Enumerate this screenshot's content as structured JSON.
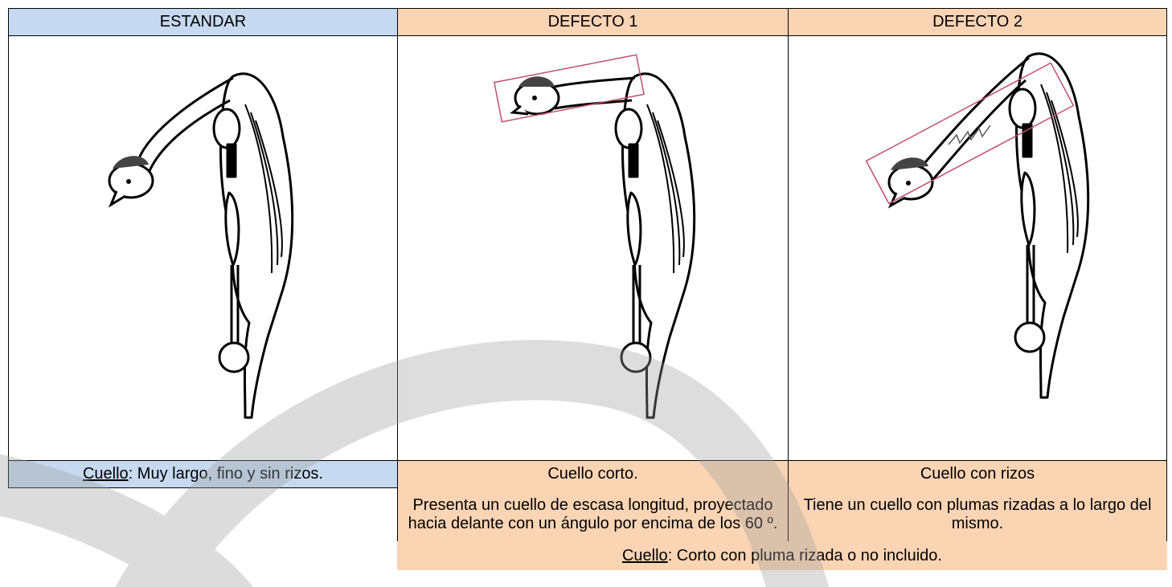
{
  "table": {
    "header": [
      "ESTANDAR",
      "DEFECTO 1",
      "DEFECTO 2"
    ],
    "rows": [
      [
        {
          "label": "Cuello",
          "text": ": Muy largo, fino y sin rizos."
        },
        "Cuello corto.",
        "Cuello con rizos"
      ],
      [
        "Presenta un cuello de escasa longitud, proyectado hacia delante con un ángulo por encima de los 60 º.",
        "Tiene un cuello con plumas rizadas a lo largo del mismo."
      ],
      [
        {
          "label": "Cuello",
          "text": ": Corto con pluma rizada o no incluido."
        }
      ]
    ]
  }
}
